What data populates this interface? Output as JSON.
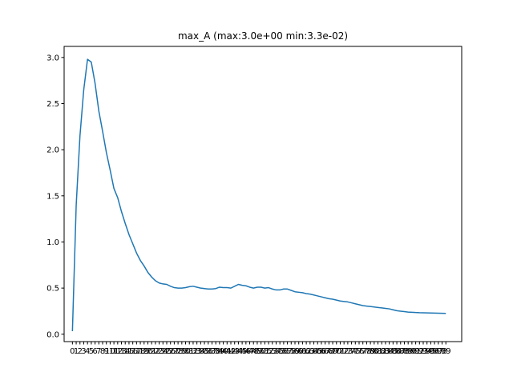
{
  "chart_data": {
    "type": "line",
    "title": "max_A (max:3.0e+00 min:3.3e-02)",
    "xlabel": "",
    "ylabel": "",
    "x": [
      0,
      1,
      2,
      3,
      4,
      5,
      6,
      7,
      8,
      9,
      10,
      11,
      12,
      13,
      14,
      15,
      16,
      17,
      18,
      19,
      20,
      21,
      22,
      23,
      24,
      25,
      26,
      27,
      28,
      29,
      30,
      31,
      32,
      33,
      34,
      35,
      36,
      37,
      38,
      39,
      40,
      41,
      42,
      43,
      44,
      45,
      46,
      47,
      48,
      49,
      50,
      51,
      52,
      53,
      54,
      55,
      56,
      57,
      58,
      59,
      60,
      61,
      62,
      63,
      64,
      65,
      66,
      67,
      68,
      69,
      70,
      71,
      72,
      73,
      74,
      75,
      76,
      77,
      78,
      79,
      80,
      81,
      82,
      83,
      84,
      85,
      86,
      87,
      88,
      89,
      90,
      91,
      92,
      93,
      94,
      95,
      96,
      97,
      98,
      99
    ],
    "xticks": [
      "0",
      "1",
      "2",
      "3",
      "4",
      "5",
      "6",
      "7",
      "8",
      "9",
      "10",
      "11",
      "12",
      "13",
      "14",
      "15",
      "16",
      "17",
      "18",
      "19",
      "20",
      "21",
      "22",
      "23",
      "24",
      "25",
      "26",
      "27",
      "28",
      "29",
      "30",
      "31",
      "32",
      "33",
      "34",
      "35",
      "36",
      "37",
      "38",
      "39",
      "40",
      "41",
      "42",
      "43",
      "44",
      "45",
      "46",
      "47",
      "48",
      "49",
      "50",
      "51",
      "52",
      "53",
      "54",
      "55",
      "56",
      "57",
      "58",
      "59",
      "60",
      "61",
      "62",
      "63",
      "64",
      "65",
      "66",
      "67",
      "68",
      "69",
      "70",
      "71",
      "72",
      "73",
      "74",
      "75",
      "76",
      "77",
      "78",
      "79",
      "80",
      "81",
      "82",
      "83",
      "84",
      "85",
      "86",
      "87",
      "88",
      "89",
      "90",
      "91",
      "92",
      "93",
      "94",
      "95",
      "96",
      "97",
      "98",
      "99"
    ],
    "yticks": [
      "0.0",
      "0.5",
      "1.0",
      "1.5",
      "2.0",
      "2.5",
      "3.0"
    ],
    "ytick_values": [
      0,
      0.5,
      1.0,
      1.5,
      2.0,
      2.5,
      3.0
    ],
    "ylim": [
      -0.08,
      3.12
    ],
    "xlim": [
      -2.2,
      103.2
    ],
    "grid": false,
    "line_color": "#1f77b4",
    "series": [
      {
        "values": [
          0.033,
          1.4,
          2.15,
          2.65,
          2.98,
          2.95,
          2.72,
          2.42,
          2.2,
          1.97,
          1.78,
          1.58,
          1.48,
          1.33,
          1.2,
          1.08,
          0.98,
          0.88,
          0.8,
          0.74,
          0.67,
          0.62,
          0.58,
          0.555,
          0.545,
          0.54,
          0.52,
          0.505,
          0.5,
          0.5,
          0.505,
          0.515,
          0.52,
          0.51,
          0.5,
          0.495,
          0.49,
          0.49,
          0.495,
          0.51,
          0.505,
          0.505,
          0.5,
          0.52,
          0.54,
          0.53,
          0.525,
          0.51,
          0.5,
          0.51,
          0.51,
          0.5,
          0.505,
          0.49,
          0.48,
          0.48,
          0.49,
          0.49,
          0.475,
          0.46,
          0.455,
          0.45,
          0.44,
          0.435,
          0.425,
          0.415,
          0.405,
          0.395,
          0.385,
          0.38,
          0.37,
          0.36,
          0.355,
          0.35,
          0.34,
          0.33,
          0.32,
          0.31,
          0.305,
          0.3,
          0.295,
          0.29,
          0.285,
          0.28,
          0.275,
          0.265,
          0.255,
          0.25,
          0.245,
          0.24,
          0.238,
          0.235,
          0.233,
          0.232,
          0.231,
          0.23,
          0.229,
          0.228,
          0.227,
          0.226
        ]
      }
    ]
  }
}
